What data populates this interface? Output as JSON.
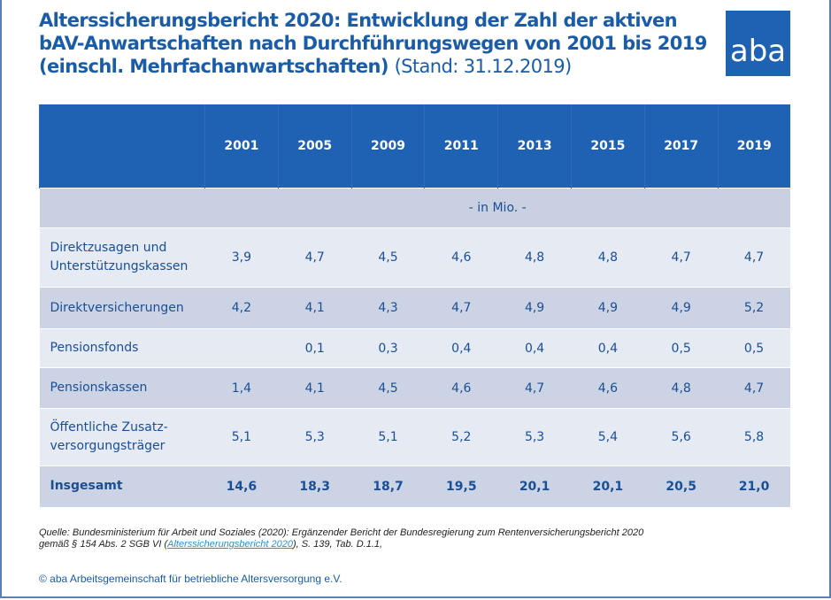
{
  "title": {
    "main": "Alterssicherungsbericht 2020: Entwicklung der Zahl der aktiven bAV-Anwartschaften nach Durchführungswegen von 2001 bis 2019 (einschl.  Mehrfachanwartschaften)",
    "stand": "(Stand: 31.12.2019)"
  },
  "logo": {
    "text": "aba",
    "color": "#1f62b3"
  },
  "table": {
    "years": [
      "2001",
      "2005",
      "2009",
      "2011",
      "2013",
      "2015",
      "2017",
      "2019"
    ],
    "unit": "- in Mio. -",
    "rows": [
      {
        "label_lines": [
          "Direktzusagen und",
          "Unterstützungskassen"
        ],
        "values": [
          "3,9",
          "4,7",
          "4,5",
          "4,6",
          "4,8",
          "4,8",
          "4,7",
          "4,7"
        ]
      },
      {
        "label_lines": [
          "Direktversicherungen"
        ],
        "values": [
          "4,2",
          "4,1",
          "4,3",
          "4,7",
          "4,9",
          "4,9",
          "4,9",
          "5,2"
        ]
      },
      {
        "label_lines": [
          "Pensionsfonds"
        ],
        "values": [
          "",
          "0,1",
          "0,3",
          "0,4",
          "0,4",
          "0,4",
          "0,5",
          "0,5"
        ]
      },
      {
        "label_lines": [
          "Pensionskassen"
        ],
        "values": [
          "1,4",
          "4,1",
          "4,5",
          "4,6",
          "4,7",
          "4,6",
          "4,8",
          "4,7"
        ]
      },
      {
        "label_lines": [
          "Öffentliche Zusatz-",
          "versorgungsträger"
        ],
        "values": [
          "5,1",
          "5,3",
          "5,1",
          "5,2",
          "5,3",
          "5,4",
          "5,6",
          "5,8"
        ]
      },
      {
        "label_lines": [
          "Insgesamt"
        ],
        "values": [
          "14,6",
          "18,3",
          "18,7",
          "19,5",
          "20,1",
          "20,1",
          "20,5",
          "21,0"
        ]
      }
    ]
  },
  "source": {
    "line1": "Quelle: Bundesministerium für Arbeit und Soziales (2020): Ergänzender Bericht der Bundesregierung zum Rentenversicherungsbericht 2020",
    "line2_pre": "gemäß § 154 Abs. 2 SGB VI (",
    "link": "Alterssicherungsbericht 2020",
    "line2_post": "), S. 139, Tab. D.1.1,"
  },
  "copyright": "© aba Arbeitsgemeinschaft für betriebliche Altersversorgung e.V."
}
